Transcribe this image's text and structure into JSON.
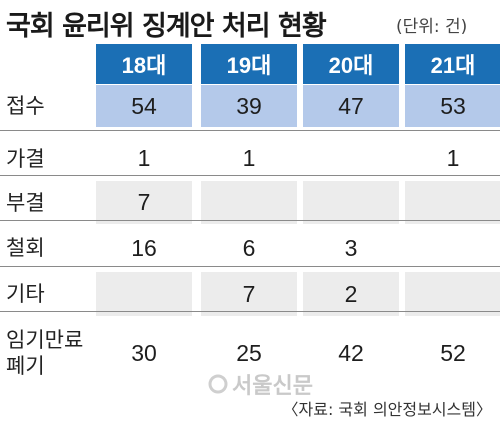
{
  "chart_data": {
    "type": "table",
    "title": "국회 윤리위 징계안 처리 현황",
    "unit": "(단위: 건)",
    "columns": [
      "18대",
      "19대",
      "20대",
      "21대"
    ],
    "rows": [
      {
        "label": "접수",
        "values": [
          "54",
          "39",
          "47",
          "53"
        ]
      },
      {
        "label": "가결",
        "values": [
          "1",
          "1",
          "",
          "1"
        ]
      },
      {
        "label": "부결",
        "values": [
          "7",
          "",
          "",
          ""
        ]
      },
      {
        "label": "철회",
        "values": [
          "16",
          "6",
          "3",
          ""
        ]
      },
      {
        "label": "기타",
        "values": [
          "",
          "7",
          "2",
          ""
        ]
      },
      {
        "label": "임기만료\n폐기",
        "values": [
          "30",
          "25",
          "42",
          "52"
        ]
      }
    ],
    "source": "〈자료: 국회 의안정보시스템〉",
    "watermark": "서울신문"
  },
  "colors": {
    "header_bg": "#1b6fb5",
    "first_row_bg": "#b4c9ea",
    "band_white": "#ffffff",
    "band_gray": "#ececec",
    "rule": "#8a8a8a"
  }
}
